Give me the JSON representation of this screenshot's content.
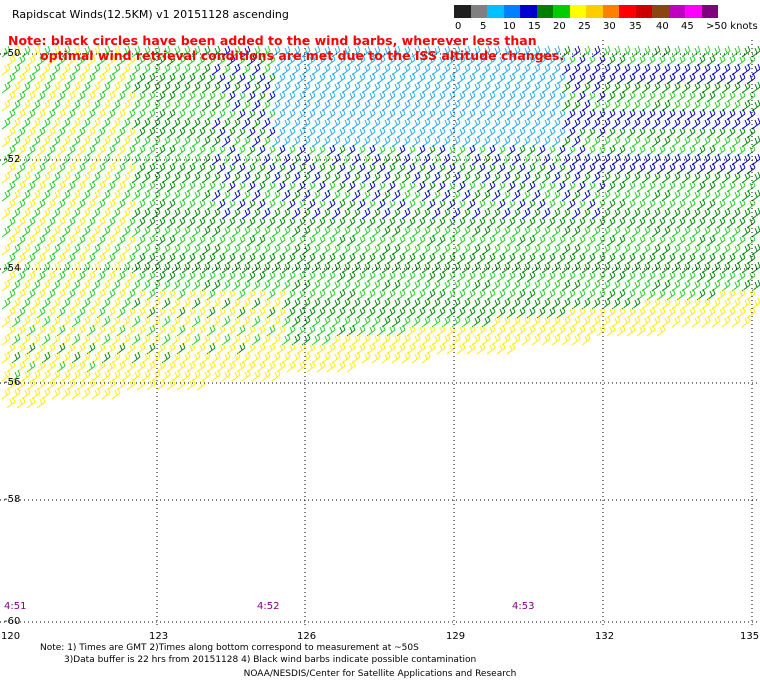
{
  "title": "Rapidscat Winds(12.5KM) v1 20151128 ascending",
  "note": {
    "line1": "Note: black circles have been added to the wind barbs, wherever less than",
    "line2": "optimal wind retrieval conditions are met due to the ISS altitude changes."
  },
  "legend": {
    "colors": [
      "#202020",
      "#808080",
      "#00c0ff",
      "#0080ff",
      "#0000cc",
      "#008000",
      "#00cc00",
      "#ffff00",
      "#ffcc00",
      "#ff8000",
      "#ff0000",
      "#cc0000",
      "#8b4513",
      "#c000c0",
      "#ff00ff",
      "#800080"
    ],
    "labels": [
      "0",
      "5",
      "10",
      "15",
      "20",
      "25",
      "30",
      "35",
      "40",
      "45",
      ">50 knots"
    ]
  },
  "axes": {
    "lat_labels": [
      "-50",
      "-52",
      "-54",
      "-56",
      "-58",
      "-60"
    ],
    "lon_labels": [
      "120",
      "123",
      "126",
      "129",
      "132",
      "135"
    ]
  },
  "times": [
    "4:51",
    "4:52",
    "4:53"
  ],
  "footer": {
    "line1": "Note: 1) Times are GMT 2)Times along bottom correspond to measurement at ~50S",
    "line2": "3)Data buffer is 22 hrs from 20151128 4) Black wind barbs indicate possible contamination",
    "line3": "NOAA/NESDIS/Center for Satellite Applications and Research"
  },
  "barb_colors": {
    "yellow": "#ffee00",
    "light_green": "#22cc22",
    "green": "#008800",
    "blue": "#0000cc",
    "cyan": "#22aaee",
    "black": "#000000"
  }
}
